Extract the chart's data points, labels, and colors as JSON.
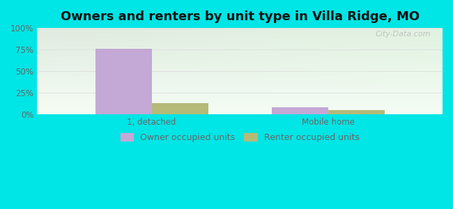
{
  "title": "Owners and renters by unit type in Villa Ridge, MO",
  "categories": [
    "1, detached",
    "Mobile home"
  ],
  "owner_values": [
    76,
    8
  ],
  "renter_values": [
    13,
    5
  ],
  "owner_color": "#c4a8d5",
  "renter_color": "#b5ba78",
  "ylim": [
    0,
    100
  ],
  "yticks": [
    0,
    25,
    50,
    75,
    100
  ],
  "ytick_labels": [
    "0%",
    "25%",
    "50%",
    "75%",
    "100%"
  ],
  "bg_color": "#00e5e5",
  "watermark": "City-Data.com",
  "legend_owner": "Owner occupied units",
  "legend_renter": "Renter occupied units",
  "bar_width": 0.32,
  "title_fontsize": 13,
  "tick_fontsize": 8.5,
  "legend_fontsize": 9,
  "grid_color": "#dddddd",
  "tick_color": "#666666"
}
